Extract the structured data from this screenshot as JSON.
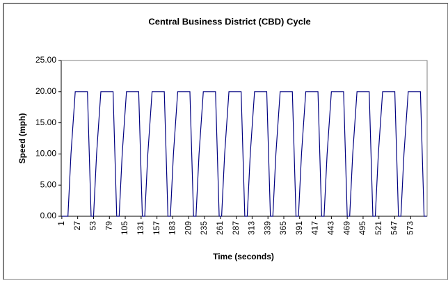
{
  "chart_data": {
    "type": "line",
    "title": "Central Business District (CBD) Cycle",
    "x_label": "Time (seconds)",
    "y_label": "Speed (mph)",
    "x": [
      1,
      11,
      13,
      16,
      23,
      43,
      49,
      53,
      55,
      58,
      65,
      85,
      91,
      95,
      97,
      100,
      107,
      127,
      133,
      137,
      139,
      142,
      149,
      169,
      175,
      179,
      181,
      184,
      191,
      211,
      217,
      221,
      223,
      226,
      233,
      253,
      259,
      263,
      265,
      268,
      275,
      295,
      301,
      305,
      307,
      310,
      317,
      337,
      343,
      347,
      349,
      352,
      359,
      379,
      385,
      389,
      391,
      394,
      401,
      421,
      427,
      431,
      433,
      436,
      443,
      463,
      469,
      473,
      475,
      478,
      485,
      505,
      511,
      515,
      517,
      520,
      527,
      547,
      553,
      557,
      559,
      562,
      569,
      589,
      595,
      599
    ],
    "values": [
      0,
      0,
      4,
      10,
      20,
      20,
      0,
      0,
      4,
      10,
      20,
      20,
      0,
      0,
      4,
      10,
      20,
      20,
      0,
      0,
      4,
      10,
      20,
      20,
      0,
      0,
      4,
      10,
      20,
      20,
      0,
      0,
      4,
      10,
      20,
      20,
      0,
      0,
      4,
      10,
      20,
      20,
      0,
      0,
      4,
      10,
      20,
      20,
      0,
      0,
      4,
      10,
      20,
      20,
      0,
      0,
      4,
      10,
      20,
      20,
      0,
      0,
      4,
      10,
      20,
      20,
      0,
      0,
      4,
      10,
      20,
      20,
      0,
      0,
      4,
      10,
      20,
      20,
      0,
      0,
      4,
      10,
      20,
      20,
      0,
      0
    ],
    "color": "#000080",
    "xlim": [
      0,
      600
    ],
    "xticks": [
      1,
      27,
      53,
      79,
      105,
      131,
      157,
      183,
      209,
      235,
      261,
      287,
      313,
      339,
      365,
      391,
      417,
      443,
      469,
      495,
      521,
      547,
      573
    ],
    "ylim": [
      0,
      25
    ],
    "yticks": [
      {
        "value": 0,
        "label": "0.00"
      },
      {
        "value": 5,
        "label": "5.00"
      },
      {
        "value": 10,
        "label": "10.00"
      },
      {
        "value": 15,
        "label": "15.00"
      },
      {
        "value": 20,
        "label": "20.00"
      },
      {
        "value": 25,
        "label": "25.00"
      }
    ]
  }
}
